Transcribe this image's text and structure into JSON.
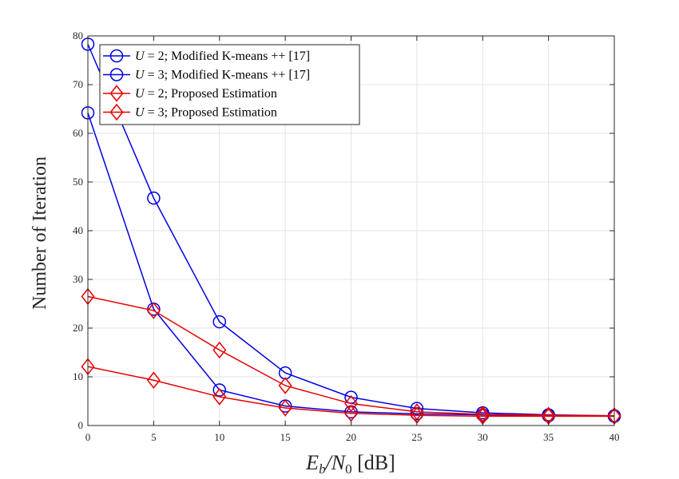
{
  "chart_data": {
    "type": "line",
    "xlabel": "Ē_b/N_0 [dB]",
    "xlabel_parts": {
      "e": "E",
      "e_sub": "b",
      "slash": "/N",
      "n_sub": "0",
      "unit": " [dB]"
    },
    "ylabel": "Number of Iteration",
    "xlim": [
      0,
      40
    ],
    "ylim": [
      0,
      80
    ],
    "xticks": [
      0,
      5,
      10,
      15,
      20,
      25,
      30,
      35,
      40
    ],
    "yticks": [
      0,
      10,
      20,
      30,
      40,
      50,
      60,
      70,
      80
    ],
    "grid": true,
    "legend_position": "top-left",
    "x": [
      0,
      5,
      10,
      15,
      20,
      25,
      30,
      35,
      40
    ],
    "series": [
      {
        "name": "U = 2; Modified K-means ++ [17]",
        "legend_var": "U",
        "legend_rest": " = 2; Modified K-means ++ [17]",
        "color": "#0000e6",
        "marker": "circle",
        "values": [
          78.3,
          46.7,
          21.3,
          10.8,
          5.8,
          3.5,
          2.6,
          2.2,
          2.0
        ]
      },
      {
        "name": "U = 3; Modified K-means ++ [17]",
        "legend_var": "U",
        "legend_rest": " = 3; Modified K-means ++ [17]",
        "color": "#0000e6",
        "marker": "circle",
        "values": [
          64.2,
          23.9,
          7.3,
          4.0,
          2.8,
          2.4,
          2.2,
          2.0,
          1.9
        ]
      },
      {
        "name": "U = 2; Proposed Estimation",
        "legend_var": "U",
        "legend_rest": " = 2; Proposed Estimation",
        "color": "#e60000",
        "marker": "diamond",
        "values": [
          26.5,
          23.6,
          15.5,
          8.2,
          4.5,
          2.8,
          2.3,
          2.1,
          2.0
        ]
      },
      {
        "name": "U = 3; Proposed Estimation",
        "legend_var": "U",
        "legend_rest": " = 3; Proposed Estimation",
        "color": "#e60000",
        "marker": "diamond",
        "values": [
          12.1,
          9.3,
          5.9,
          3.6,
          2.5,
          2.1,
          1.9,
          1.9,
          1.9
        ]
      }
    ]
  }
}
